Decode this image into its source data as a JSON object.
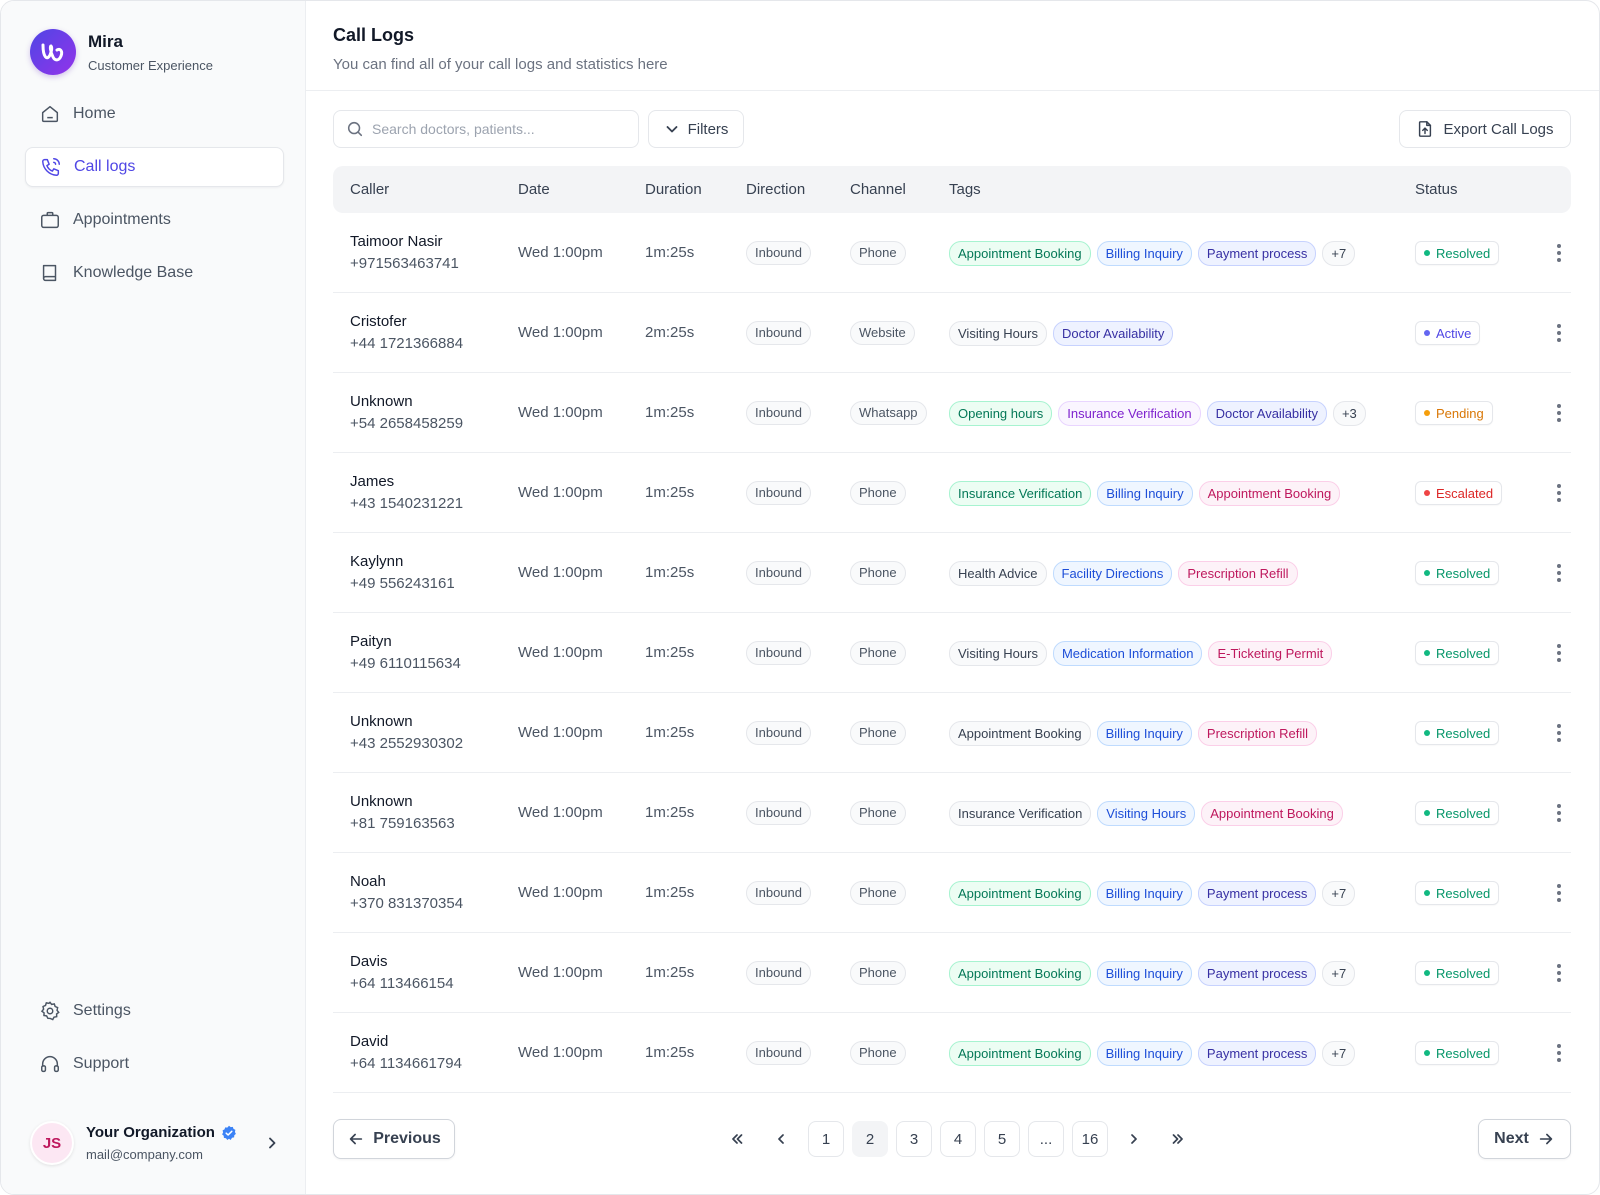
{
  "app": {
    "name": "Mira",
    "subtitle": "Customer Experience",
    "brand_color": "#5b21b6"
  },
  "sidebar": {
    "items": [
      {
        "label": "Home",
        "icon": "home-icon"
      },
      {
        "label": "Call logs",
        "icon": "phone-call-icon",
        "active": true
      },
      {
        "label": "Appointments",
        "icon": "briefcase-icon"
      },
      {
        "label": "Knowledge Base",
        "icon": "book-icon"
      }
    ],
    "bottom_items": [
      {
        "label": "Settings",
        "icon": "gear-icon"
      },
      {
        "label": "Support",
        "icon": "headset-icon"
      }
    ],
    "org": {
      "initials": "JS",
      "name": "Your Organization",
      "email": "mail@company.com"
    }
  },
  "header": {
    "title": "Call Logs",
    "subtitle": "You can find all of your call logs and statistics here"
  },
  "toolbar": {
    "search_placeholder": "Search doctors, patients...",
    "filters_label": "Filters",
    "export_label": "Export Call Logs"
  },
  "table": {
    "columns": [
      "Caller",
      "Date",
      "Duration",
      "Direction",
      "Channel",
      "Tags",
      "Status"
    ],
    "rows": [
      {
        "name": "Taimoor Nasir",
        "phone": "+971563463741",
        "date": "Wed 1:00pm",
        "duration": "1m:25s",
        "direction": "Inbound",
        "channel": "Phone",
        "tags": [
          {
            "label": "Appointment Booking",
            "color": "green"
          },
          {
            "label": "Billing Inquiry",
            "color": "blue"
          },
          {
            "label": "Payment process",
            "color": "indigo"
          }
        ],
        "more_tags": "+7",
        "status": "Resolved"
      },
      {
        "name": "Cristofer",
        "phone": "+44 1721366884",
        "date": "Wed 1:00pm",
        "duration": "2m:25s",
        "direction": "Inbound",
        "channel": "Website",
        "tags": [
          {
            "label": "Visiting Hours",
            "color": "gray"
          },
          {
            "label": "Doctor Availability",
            "color": "indigo"
          }
        ],
        "more_tags": "",
        "status": "Active"
      },
      {
        "name": "Unknown",
        "phone": "+54 2658458259",
        "date": "Wed 1:00pm",
        "duration": "1m:25s",
        "direction": "Inbound",
        "channel": "Whatsapp",
        "tags": [
          {
            "label": "Opening hours",
            "color": "green"
          },
          {
            "label": "Insurance Verification",
            "color": "purple"
          },
          {
            "label": "Doctor Availability",
            "color": "indigo"
          }
        ],
        "more_tags": "+3",
        "status": "Pending"
      },
      {
        "name": "James",
        "phone": "+43 1540231221",
        "date": "Wed 1:00pm",
        "duration": "1m:25s",
        "direction": "Inbound",
        "channel": "Phone",
        "tags": [
          {
            "label": "Insurance Verification",
            "color": "green"
          },
          {
            "label": "Billing Inquiry",
            "color": "blue"
          },
          {
            "label": "Appointment Booking",
            "color": "pink"
          }
        ],
        "more_tags": "",
        "status": "Escalated"
      },
      {
        "name": "Kaylynn",
        "phone": "+49 556243161",
        "date": "Wed 1:00pm",
        "duration": "1m:25s",
        "direction": "Inbound",
        "channel": "Phone",
        "tags": [
          {
            "label": "Health Advice",
            "color": "gray"
          },
          {
            "label": "Facility Directions",
            "color": "blue"
          },
          {
            "label": "Prescription Refill",
            "color": "pink"
          }
        ],
        "more_tags": "",
        "status": "Resolved"
      },
      {
        "name": "Paityn",
        "phone": "+49 6110115634",
        "date": "Wed 1:00pm",
        "duration": "1m:25s",
        "direction": "Inbound",
        "channel": "Phone",
        "tags": [
          {
            "label": "Visiting Hours",
            "color": "gray"
          },
          {
            "label": "Medication Information",
            "color": "blue"
          },
          {
            "label": "E-Ticketing Permit",
            "color": "pink"
          }
        ],
        "more_tags": "",
        "status": "Resolved"
      },
      {
        "name": "Unknown",
        "phone": "+43 2552930302",
        "date": "Wed 1:00pm",
        "duration": "1m:25s",
        "direction": "Inbound",
        "channel": "Phone",
        "tags": [
          {
            "label": "Appointment Booking",
            "color": "gray"
          },
          {
            "label": "Billing Inquiry",
            "color": "blue"
          },
          {
            "label": "Prescription Refill",
            "color": "pink"
          }
        ],
        "more_tags": "",
        "status": "Resolved"
      },
      {
        "name": "Unknown",
        "phone": "+81 759163563",
        "date": "Wed 1:00pm",
        "duration": "1m:25s",
        "direction": "Inbound",
        "channel": "Phone",
        "tags": [
          {
            "label": "Insurance Verification",
            "color": "gray"
          },
          {
            "label": "Visiting Hours",
            "color": "blue"
          },
          {
            "label": "Appointment Booking",
            "color": "pink"
          }
        ],
        "more_tags": "",
        "status": "Resolved"
      },
      {
        "name": "Noah",
        "phone": "+370 831370354",
        "date": "Wed 1:00pm",
        "duration": "1m:25s",
        "direction": "Inbound",
        "channel": "Phone",
        "tags": [
          {
            "label": "Appointment Booking",
            "color": "green"
          },
          {
            "label": "Billing Inquiry",
            "color": "blue"
          },
          {
            "label": "Payment process",
            "color": "indigo"
          }
        ],
        "more_tags": "+7",
        "status": "Resolved"
      },
      {
        "name": "Davis",
        "phone": "+64 113466154",
        "date": "Wed 1:00pm",
        "duration": "1m:25s",
        "direction": "Inbound",
        "channel": "Phone",
        "tags": [
          {
            "label": "Appointment Booking",
            "color": "green"
          },
          {
            "label": "Billing Inquiry",
            "color": "blue"
          },
          {
            "label": "Payment process",
            "color": "indigo"
          }
        ],
        "more_tags": "+7",
        "status": "Resolved"
      },
      {
        "name": "David",
        "phone": "+64 1134661794",
        "date": "Wed 1:00pm",
        "duration": "1m:25s",
        "direction": "Inbound",
        "channel": "Phone",
        "tags": [
          {
            "label": "Appointment Booking",
            "color": "green"
          },
          {
            "label": "Billing Inquiry",
            "color": "blue"
          },
          {
            "label": "Payment process",
            "color": "indigo"
          }
        ],
        "more_tags": "+7",
        "status": "Resolved"
      }
    ]
  },
  "tag_colors": {
    "green": {
      "bg": "#ecfdf3",
      "border": "#a7f3d0",
      "text": "#047857"
    },
    "blue": {
      "bg": "#eff6ff",
      "border": "#bfdbfe",
      "text": "#1d4ed8"
    },
    "indigo": {
      "bg": "#eef2ff",
      "border": "#c7d2fe",
      "text": "#3730a3"
    },
    "purple": {
      "bg": "#faf5ff",
      "border": "#e9d5ff",
      "text": "#7e22ce"
    },
    "pink": {
      "bg": "#fdf2f8",
      "border": "#fbcfe8",
      "text": "#be185d"
    },
    "gray": {
      "bg": "#f9fafb",
      "border": "#e5e7eb",
      "text": "#374151"
    }
  },
  "status_colors": {
    "Resolved": {
      "dot": "#10b981",
      "text": "#059669"
    },
    "Active": {
      "dot": "#6366f1",
      "text": "#4f46e5"
    },
    "Pending": {
      "dot": "#f59e0b",
      "text": "#d97706"
    },
    "Escalated": {
      "dot": "#ef4444",
      "text": "#dc2626"
    }
  },
  "pagination": {
    "previous_label": "Previous",
    "next_label": "Next",
    "pages": [
      "1",
      "2",
      "3",
      "4",
      "5",
      "...",
      "16"
    ],
    "current": "2"
  }
}
